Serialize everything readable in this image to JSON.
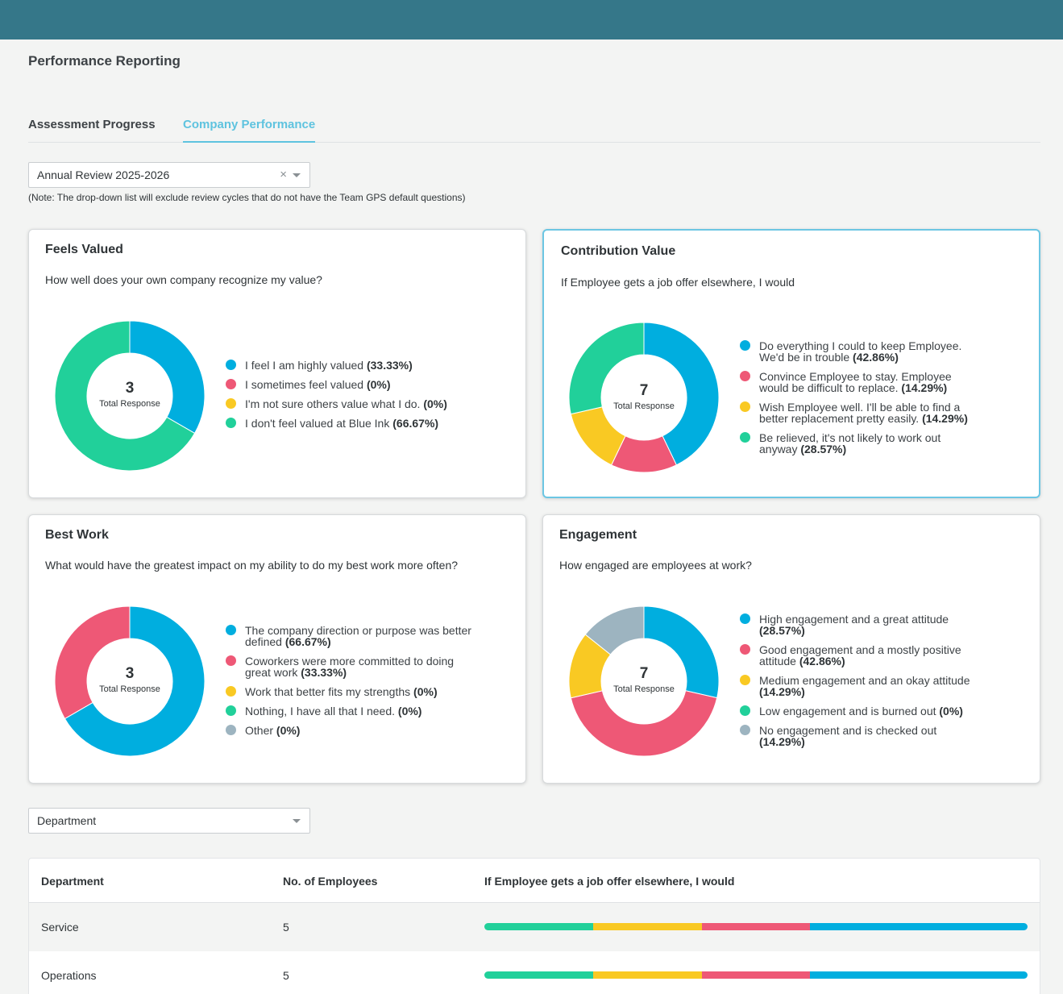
{
  "page": {
    "title": "Performance Reporting"
  },
  "tabs": [
    {
      "label": "Assessment Progress"
    },
    {
      "label": "Company Performance"
    }
  ],
  "review_select": {
    "value": "Annual Review 2025-2026",
    "clear": "×"
  },
  "note": "(Note: The drop-down list will exclude review cycles that do not have the Team GPS default questions)",
  "colors": {
    "blue": "#00aedf",
    "pink": "#ee5876",
    "yellow": "#f9c923",
    "green": "#21d09a",
    "gray": "#9db4c0",
    "header": "#357789",
    "accent": "#5ec3df"
  },
  "cards": [
    {
      "title": "Feels Valued",
      "question": "How well does your own company recognize my value?",
      "total": "3",
      "total_label": "Total Response",
      "items": [
        {
          "label": "I feel I am highly valued",
          "pct": "(33.33%)",
          "value": 33.33,
          "color": "#00aedf"
        },
        {
          "label": "I sometimes feel valued",
          "pct": "(0%)",
          "value": 0,
          "color": "#ee5876"
        },
        {
          "label": "I'm not sure others value what I do.",
          "pct": "(0%)",
          "value": 0,
          "color": "#f9c923"
        },
        {
          "label": "I don't feel valued at Blue Ink",
          "pct": "(66.67%)",
          "value": 66.67,
          "color": "#21d09a"
        }
      ]
    },
    {
      "title": "Contribution Value",
      "question": "If Employee gets a job offer elsewhere, I would",
      "total": "7",
      "total_label": "Total Response",
      "items": [
        {
          "label": "Do everything I could to keep Employee. We'd be in trouble",
          "pct": "(42.86%)",
          "value": 42.86,
          "color": "#00aedf"
        },
        {
          "label": "Convince Employee to stay. Employee would be difficult to replace.",
          "pct": "(14.29%)",
          "value": 14.29,
          "color": "#ee5876"
        },
        {
          "label": "Wish Employee well. I'll be able to find a better replacement pretty easily.",
          "pct": "(14.29%)",
          "value": 14.29,
          "color": "#f9c923"
        },
        {
          "label": "Be relieved, it's not likely to work out anyway",
          "pct": "(28.57%)",
          "value": 28.57,
          "color": "#21d09a"
        }
      ]
    },
    {
      "title": "Best Work",
      "question": "What would have the greatest impact on my ability to do my best work more often?",
      "total": "3",
      "total_label": "Total Response",
      "items": [
        {
          "label": "The company direction or purpose was better defined",
          "pct": "(66.67%)",
          "value": 66.67,
          "color": "#00aedf"
        },
        {
          "label": "Coworkers were more committed to doing great work",
          "pct": "(33.33%)",
          "value": 33.33,
          "color": "#ee5876"
        },
        {
          "label": "Work that better fits my strengths",
          "pct": "(0%)",
          "value": 0,
          "color": "#f9c923"
        },
        {
          "label": "Nothing, I have all that I need.",
          "pct": "(0%)",
          "value": 0,
          "color": "#21d09a"
        },
        {
          "label": "Other",
          "pct": "(0%)",
          "value": 0,
          "color": "#9db4c0"
        }
      ]
    },
    {
      "title": "Engagement",
      "question": "How engaged are employees at work?",
      "total": "7",
      "total_label": "Total Response",
      "items": [
        {
          "label": "High engagement and a great attitude",
          "pct": "(28.57%)",
          "value": 28.57,
          "color": "#00aedf"
        },
        {
          "label": "Good engagement and a mostly positive attitude",
          "pct": "(42.86%)",
          "value": 42.86,
          "color": "#ee5876"
        },
        {
          "label": "Medium engagement and an okay attitude",
          "pct": "(14.29%)",
          "value": 14.29,
          "color": "#f9c923"
        },
        {
          "label": "Low engagement and is burned out",
          "pct": "(0%)",
          "value": 0,
          "color": "#21d09a"
        },
        {
          "label": "No engagement and is checked out",
          "pct": "(14.29%)",
          "value": 14.29,
          "color": "#9db4c0"
        }
      ]
    }
  ],
  "dept_select": {
    "value": "Department"
  },
  "table": {
    "headers": [
      "Department",
      "No. of Employees",
      "If Employee gets a job offer elsewhere, I would"
    ],
    "rows": [
      {
        "department": "Service",
        "employees": "5",
        "segments": [
          {
            "value": 20,
            "color": "#21d09a"
          },
          {
            "value": 20,
            "color": "#f9c923"
          },
          {
            "value": 20,
            "color": "#ee5876"
          },
          {
            "value": 40,
            "color": "#00aedf"
          }
        ]
      },
      {
        "department": "Operations",
        "employees": "5",
        "segments": [
          {
            "value": 20,
            "color": "#21d09a"
          },
          {
            "value": 20,
            "color": "#f9c923"
          },
          {
            "value": 20,
            "color": "#ee5876"
          },
          {
            "value": 40,
            "color": "#00aedf"
          }
        ]
      }
    ]
  }
}
